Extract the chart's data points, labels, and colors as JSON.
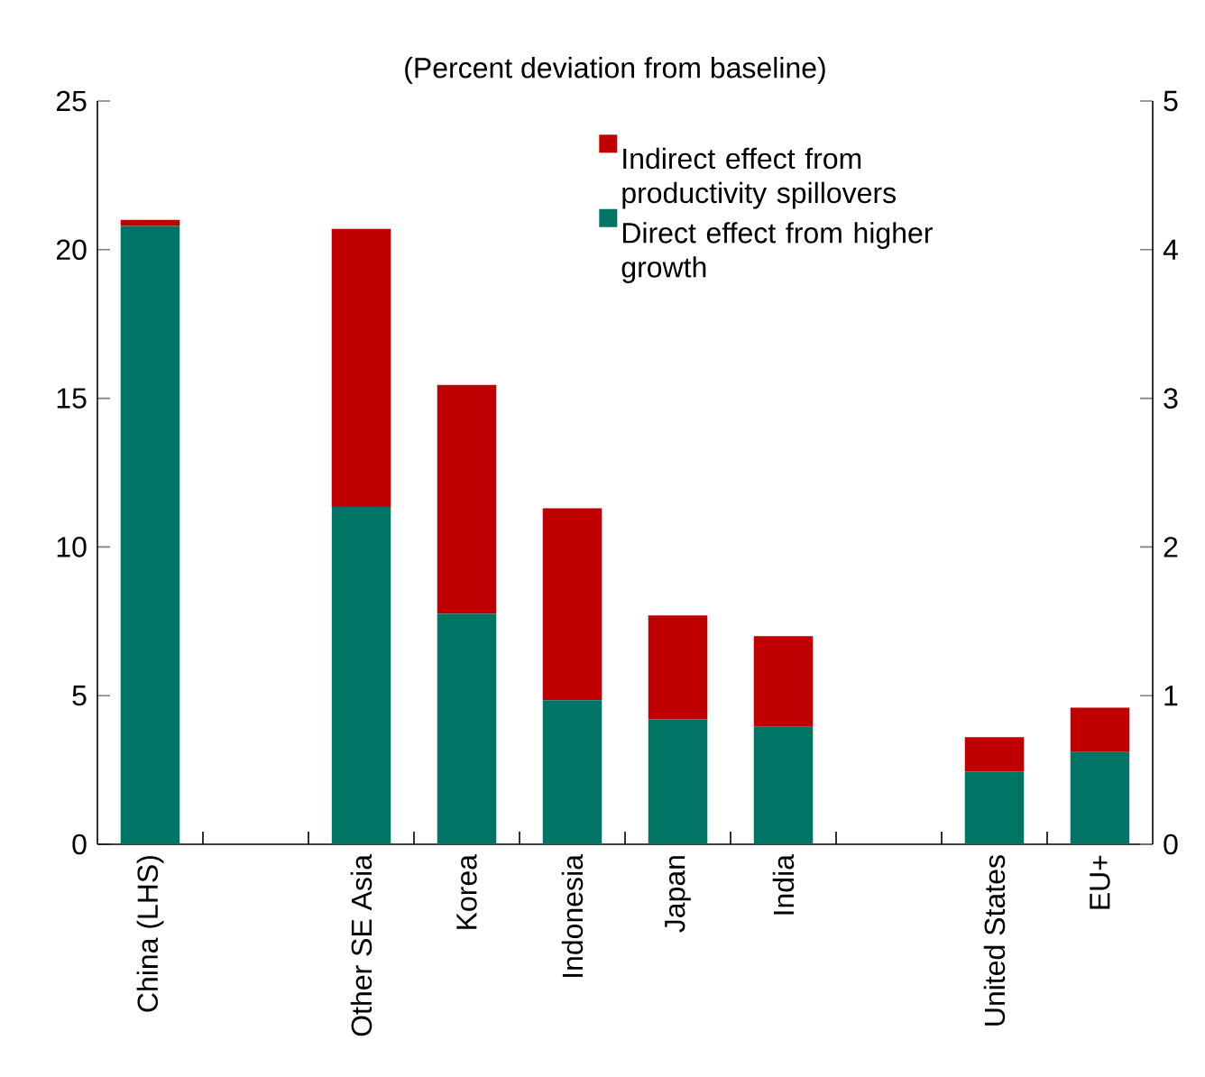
{
  "chart_data": {
    "type": "bar",
    "subtitle": "(Percent deviation from baseline)",
    "stacked": true,
    "legend": "top right",
    "categories": [
      "China (LHS)",
      null,
      "Other SE Asia",
      "Korea",
      "Indonesia",
      "Japan",
      "India",
      null,
      "United States",
      "EU+"
    ],
    "series": [
      {
        "color": "#007566",
        "values": [
          20.8,
          null,
          null,
          null,
          null,
          null,
          null,
          null,
          null,
          null
        ]
      },
      {
        "color": "#c00000",
        "values": [
          0.2,
          null,
          null,
          null,
          null,
          null,
          null,
          null,
          null,
          null
        ]
      },
      {
        "name": "Direct effect from higher growth",
        "color": "#007566",
        "axis": "y2",
        "values": [
          null,
          null,
          2.27,
          1.55,
          0.97,
          0.84,
          0.79,
          null,
          0.49,
          0.62
        ]
      },
      {
        "name": "Indirect effect from productivity spillovers",
        "color": "#c00000",
        "axis": "y2",
        "values": [
          null,
          null,
          1.87,
          1.54,
          1.29,
          0.7,
          0.61,
          null,
          0.23,
          0.3
        ]
      }
    ],
    "ylim": [
      0,
      25
    ],
    "yticks": [
      0,
      5,
      10,
      15,
      20,
      25
    ],
    "y2lim": [
      0,
      5
    ],
    "y2ticks": [
      0,
      1,
      2,
      3,
      4,
      5
    ]
  }
}
